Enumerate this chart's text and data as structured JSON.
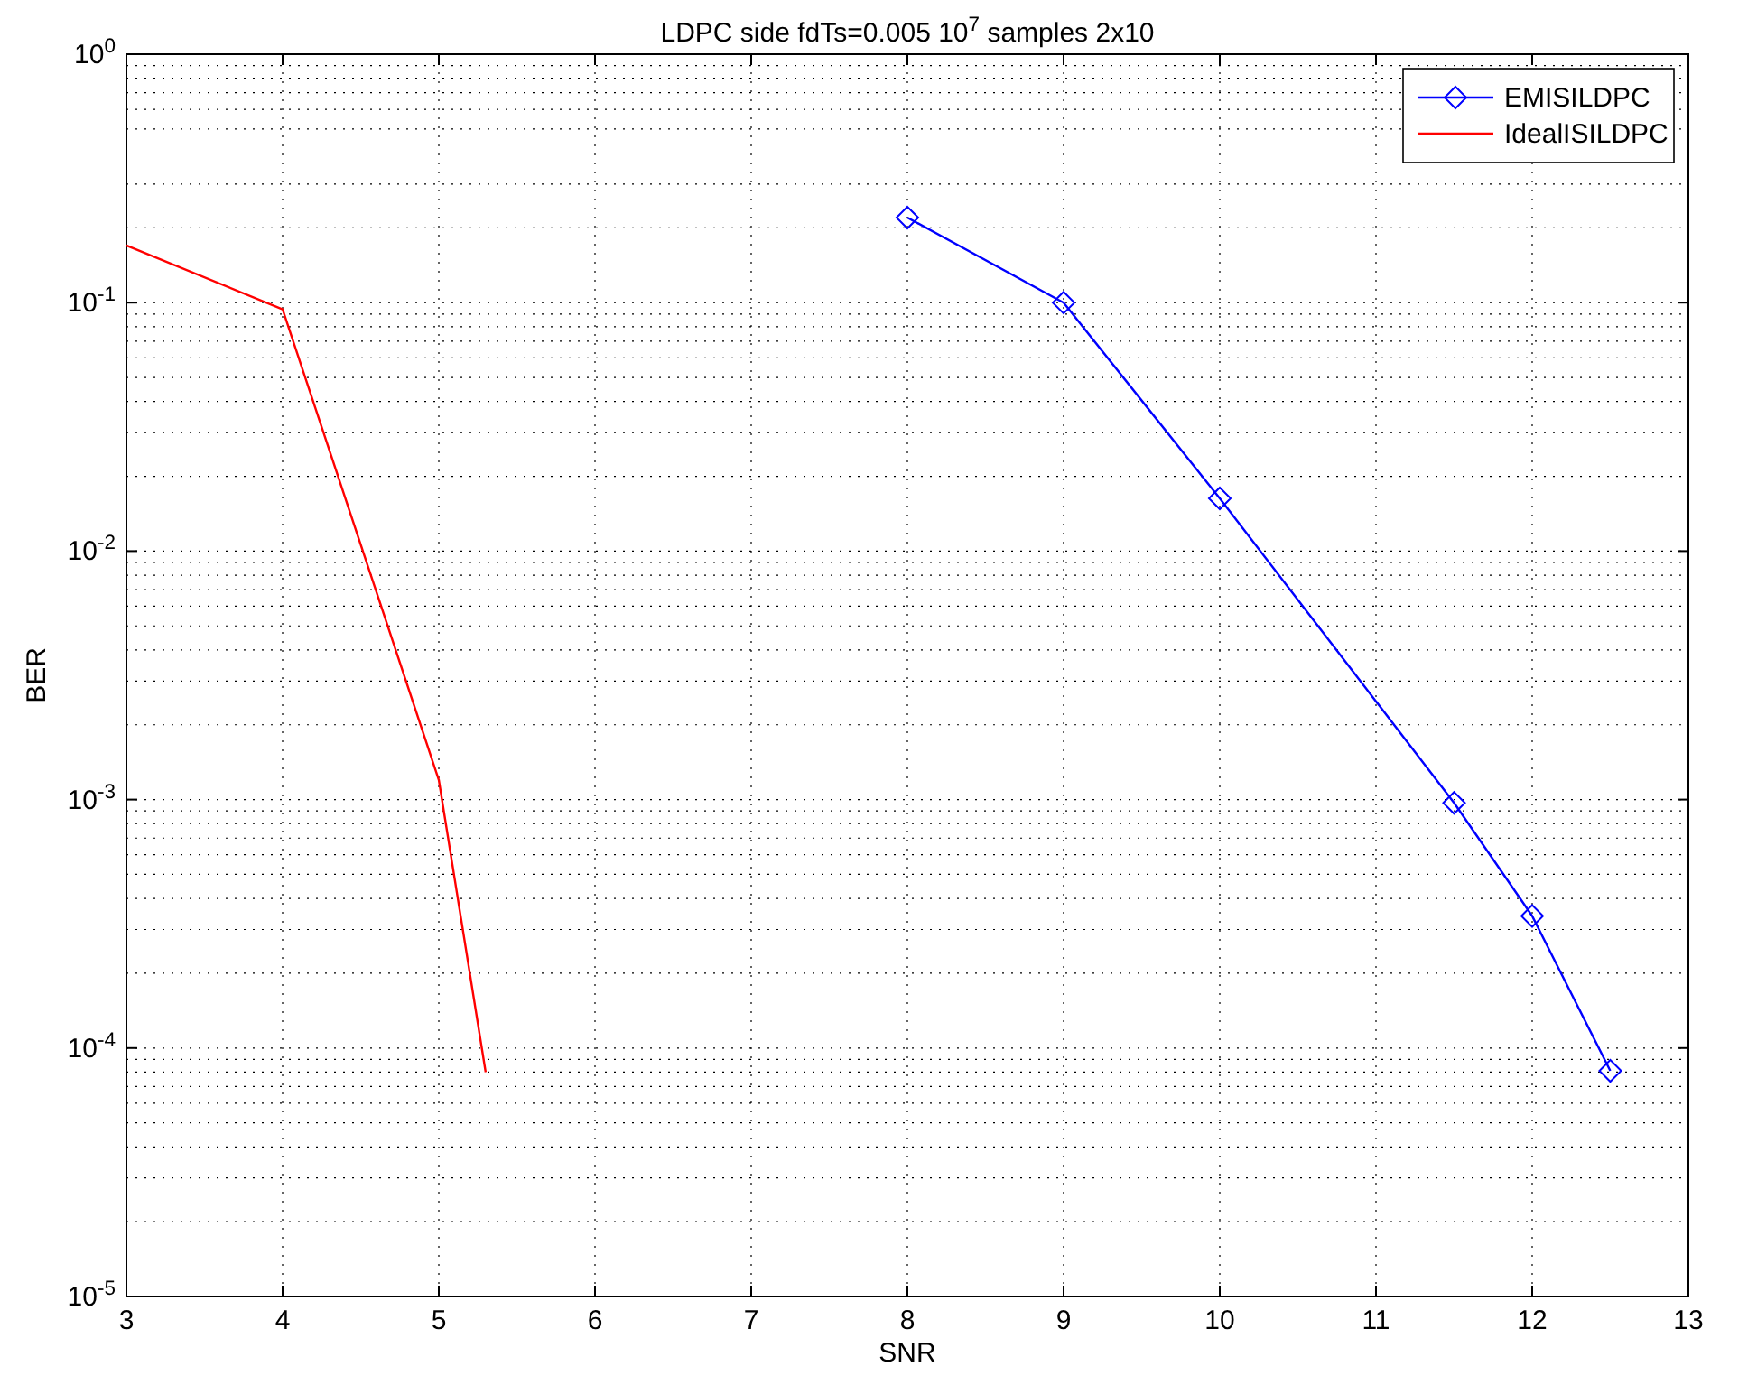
{
  "chart_data": {
    "type": "line",
    "title": "LDPC side fdTs=0.005 10$^{7}$ samples 2x10",
    "xlabel": "SNR",
    "ylabel": "BER",
    "log": "y",
    "grid": true,
    "legend": "top right",
    "xlim": [
      3,
      13
    ],
    "xticks": [
      3,
      4,
      5,
      6,
      7,
      8,
      9,
      10,
      11,
      12,
      13
    ],
    "ylim": [
      1e-05,
      1
    ],
    "yticks": [
      {
        "value": 1e-05,
        "label": "10$^{-5}$"
      },
      {
        "value": 0.0001,
        "label": "10$^{-4}$"
      },
      {
        "value": 0.001,
        "label": "10$^{-3}$"
      },
      {
        "value": 0.01,
        "label": "10$^{-2}$"
      },
      {
        "value": 0.1,
        "label": "10$^{-1}$"
      },
      {
        "value": 1,
        "label": "10$^{0}$"
      }
    ],
    "series": [
      {
        "name": "EMISILDPC",
        "color": "#0000ff",
        "marker": "diamond",
        "x": [
          8,
          9,
          10,
          11.5,
          12,
          12.5
        ],
        "values": [
          0.22,
          0.1,
          0.0163,
          0.00097,
          0.00034,
          8.1e-05
        ]
      },
      {
        "name": "IdealISILDPC",
        "color": "#ff0000",
        "marker": "none",
        "x": [
          3,
          4,
          5,
          5.3
        ],
        "values": [
          0.17,
          0.094,
          0.0012,
          8e-05
        ]
      }
    ]
  }
}
